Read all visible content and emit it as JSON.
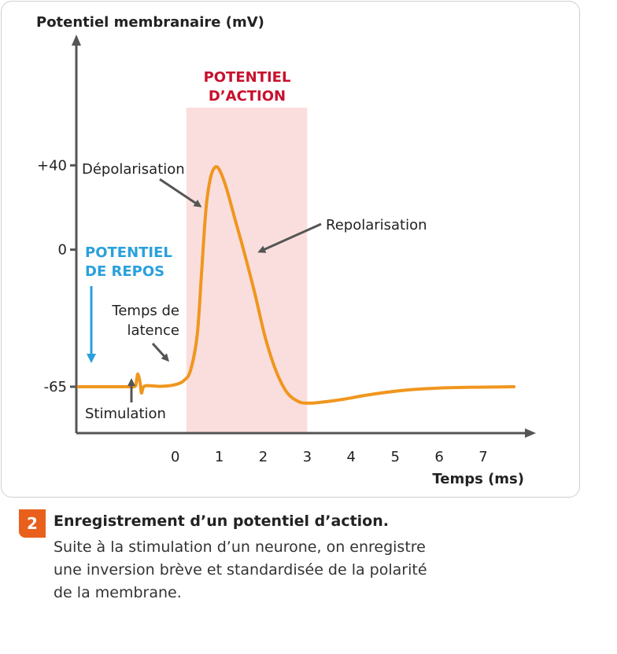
{
  "chart_data": {
    "type": "line",
    "ylabel": "Potentiel membranaire (mV)",
    "xlabel": "Temps (ms)",
    "x_ticks": [
      0,
      1,
      2,
      3,
      4,
      5,
      6,
      7
    ],
    "y_ticks": [
      {
        "value": 40,
        "label": "+40"
      },
      {
        "value": 0,
        "label": "0"
      },
      {
        "value": -65,
        "label": "-65"
      }
    ],
    "xlim": [
      -2.25,
      8.2
    ],
    "ylim": [
      -87,
      102
    ],
    "highlight_region": {
      "x": [
        0.25,
        3
      ],
      "label_lines": [
        "POTENTIEL",
        "D’ACTION"
      ],
      "color": "#fadede"
    },
    "series": [
      {
        "color": "#f0961e",
        "points": [
          [
            -2.2,
            -65
          ],
          [
            -1.1,
            -65
          ],
          [
            -0.95,
            -65
          ],
          [
            -0.9,
            -64.5
          ],
          [
            -0.88,
            -62
          ],
          [
            -0.85,
            -59
          ],
          [
            -0.8,
            -63
          ],
          [
            -0.77,
            -68
          ],
          [
            -0.72,
            -65
          ],
          [
            -0.6,
            -64.5
          ],
          [
            -0.3,
            -64.8
          ],
          [
            0,
            -64
          ],
          [
            0.2,
            -62
          ],
          [
            0.35,
            -57
          ],
          [
            0.5,
            -40
          ],
          [
            0.6,
            -10
          ],
          [
            0.7,
            20
          ],
          [
            0.8,
            34
          ],
          [
            0.9,
            39
          ],
          [
            1.0,
            38
          ],
          [
            1.15,
            30
          ],
          [
            1.35,
            15
          ],
          [
            1.55,
            0
          ],
          [
            1.8,
            -20
          ],
          [
            2.05,
            -42
          ],
          [
            2.3,
            -58
          ],
          [
            2.55,
            -68
          ],
          [
            2.8,
            -72
          ],
          [
            3.0,
            -72.8
          ],
          [
            3.3,
            -72.4
          ],
          [
            3.8,
            -71
          ],
          [
            4.5,
            -68.5
          ],
          [
            5.3,
            -66.5
          ],
          [
            6.2,
            -65.5
          ],
          [
            7.0,
            -65.2
          ],
          [
            7.7,
            -65
          ]
        ]
      }
    ],
    "annotations": {
      "resting": {
        "lines": [
          "POTENTIEL",
          "DE REPOS"
        ],
        "color": "#2aa0dc"
      },
      "latency": {
        "lines": [
          "Temps de",
          "latence"
        ]
      },
      "depolarisation": "Dépolarisation",
      "repolarisation": "Repolarisation",
      "stimulation": "Stimulation"
    }
  },
  "caption": {
    "number": "2",
    "title": "Enregistrement d’un potentiel d’action.",
    "body_lines": [
      "Suite à la stimulation d’un neurone, on enregistre",
      "une inversion brève et standardisée de la polarité",
      "de la membrane."
    ]
  }
}
